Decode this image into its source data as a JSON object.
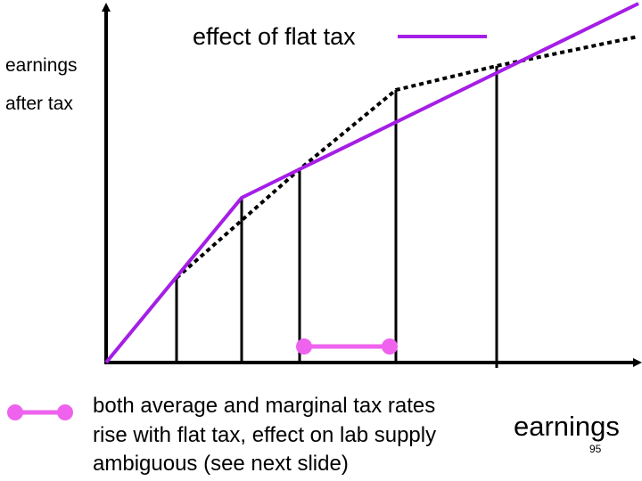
{
  "labels": {
    "y_axis_line1": "earnings",
    "y_axis_line2": "after tax",
    "x_axis": "earnings",
    "legend": "effect of flat tax",
    "page_number": "95"
  },
  "note": {
    "line1": "both average and marginal tax rates",
    "line2": "rise with flat tax, effect on lab supply",
    "line3": "ambiguous (see next slide)"
  },
  "colors": {
    "flat_tax_line": "#a51ee6",
    "original_schedule": "#000000",
    "highlight_segment": "#ee62ee",
    "axes": "#000000"
  }
}
